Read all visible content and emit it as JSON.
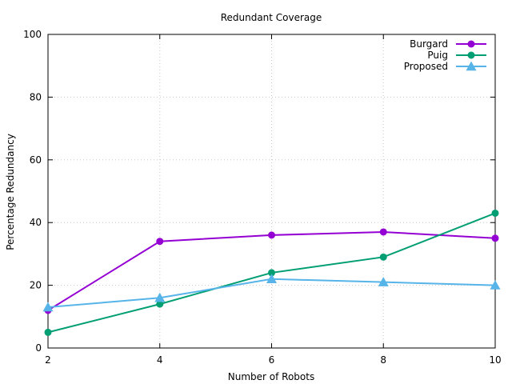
{
  "chart_data": {
    "type": "line",
    "title": "Redundant Coverage",
    "xlabel": "Number of Robots",
    "ylabel": "Percentage Redundancy",
    "x": [
      2,
      4,
      6,
      8,
      10
    ],
    "xlim": [
      2,
      10
    ],
    "ylim": [
      0,
      100
    ],
    "xticks": [
      2,
      4,
      6,
      8,
      10
    ],
    "yticks": [
      0,
      20,
      40,
      60,
      80,
      100
    ],
    "grid": true,
    "legend_position": "top-right",
    "series": [
      {
        "name": "Burgard",
        "values": [
          12,
          34,
          36,
          37,
          35
        ],
        "color": "#9400d3",
        "marker": "circle"
      },
      {
        "name": "Puig",
        "values": [
          5,
          14,
          24,
          29,
          43
        ],
        "color": "#009e73",
        "marker": "circle"
      },
      {
        "name": "Proposed",
        "values": [
          13,
          16,
          22,
          21,
          20
        ],
        "color": "#56b4e9",
        "marker": "triangle"
      }
    ]
  }
}
